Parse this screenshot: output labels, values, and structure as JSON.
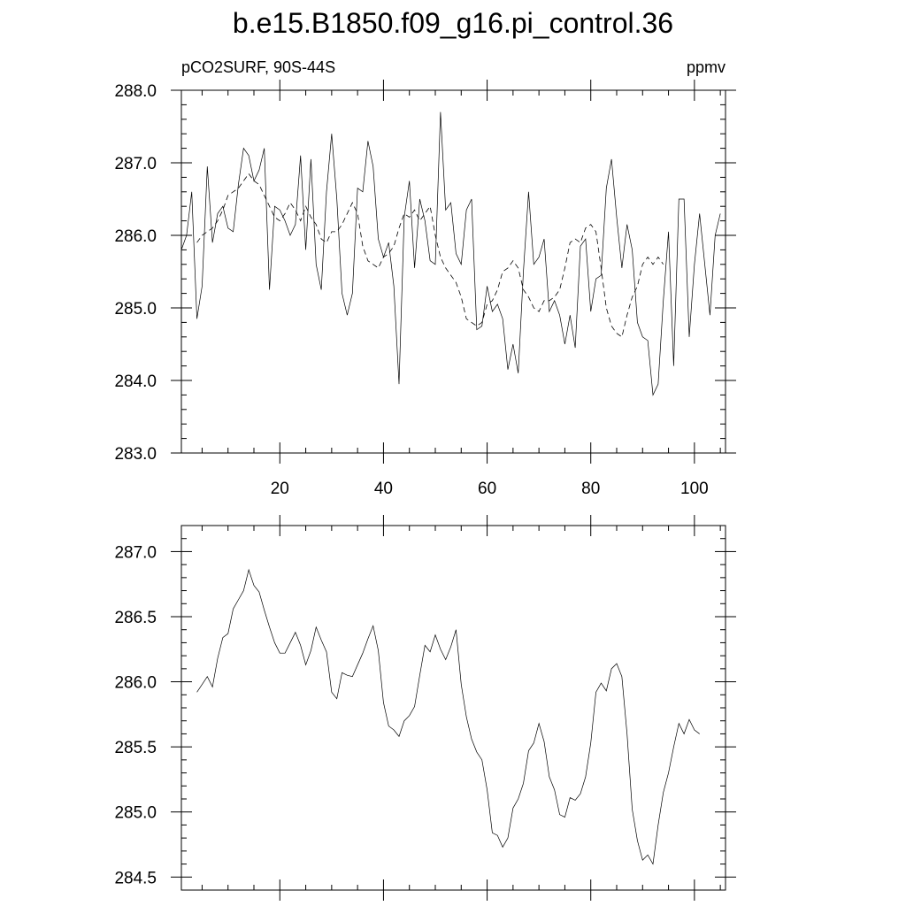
{
  "figure_title": "b.e15.B1850.f09_g16.pi_control.36",
  "chart_data": [
    {
      "type": "line",
      "title": "",
      "left_string": "pCO2SURF, 90S-44S",
      "right_string": "ppmv",
      "xlim": [
        1,
        106
      ],
      "ylim": [
        283.0,
        288.0
      ],
      "x_ticks": [
        20,
        40,
        60,
        80,
        100
      ],
      "y_ticks": [
        283.0,
        284.0,
        285.0,
        286.0,
        287.0,
        288.0
      ],
      "y_tick_labels": [
        "283.0",
        "284.0",
        "285.0",
        "286.0",
        "287.0",
        "288.0"
      ],
      "x_start": 1,
      "series": [
        {
          "style": "solid",
          "values": [
            285.8,
            286.0,
            286.6,
            284.85,
            285.3,
            286.95,
            285.9,
            286.3,
            286.4,
            286.1,
            286.05,
            286.7,
            287.2,
            287.1,
            286.75,
            286.9,
            287.2,
            285.25,
            286.4,
            286.35,
            286.2,
            286.0,
            286.15,
            287.1,
            285.8,
            287.05,
            285.6,
            285.25,
            286.6,
            287.4,
            286.5,
            285.2,
            284.9,
            285.2,
            286.65,
            286.6,
            287.3,
            286.95,
            285.95,
            285.7,
            285.9,
            285.3,
            283.95,
            286.25,
            286.75,
            285.55,
            286.5,
            286.2,
            285.65,
            285.6,
            287.7,
            286.35,
            286.45,
            285.75,
            285.6,
            286.35,
            286.5,
            284.7,
            284.75,
            285.3,
            284.95,
            285.05,
            284.85,
            284.15,
            284.5,
            284.1,
            285.5,
            286.6,
            285.6,
            285.7,
            285.95,
            284.95,
            285.1,
            284.9,
            284.5,
            284.9,
            284.45,
            285.85,
            285.95,
            284.95,
            285.4,
            285.45,
            286.65,
            287.05,
            286.25,
            285.55,
            286.15,
            285.8,
            284.8,
            284.6,
            284.55,
            283.8,
            283.95,
            285.1,
            286.05,
            284.2,
            286.5,
            286.5,
            284.6,
            285.6,
            286.3,
            285.6,
            284.9,
            286.0,
            286.3
          ]
        },
        {
          "style": "dashed",
          "x_start": 4,
          "values": [
            285.9,
            286.0,
            286.05,
            286.1,
            286.2,
            286.35,
            286.55,
            286.6,
            286.65,
            286.75,
            286.85,
            286.75,
            286.7,
            286.55,
            286.4,
            286.25,
            286.2,
            286.3,
            286.45,
            286.35,
            286.2,
            286.4,
            286.25,
            286.15,
            285.95,
            285.9,
            286.05,
            286.05,
            286.15,
            286.3,
            286.45,
            286.3,
            285.85,
            285.65,
            285.6,
            285.55,
            285.7,
            285.75,
            285.85,
            286.1,
            286.3,
            286.25,
            286.35,
            286.2,
            286.3,
            286.4,
            286.0,
            285.7,
            285.55,
            285.45,
            285.35,
            285.15,
            284.85,
            284.8,
            284.75,
            284.8,
            285.05,
            285.1,
            285.25,
            285.5,
            285.55,
            285.65,
            285.55,
            285.25,
            285.15,
            285.0,
            284.95,
            285.1,
            285.1,
            285.15,
            285.25,
            285.55,
            285.9,
            285.95,
            285.9,
            286.1,
            286.15,
            286.05,
            285.55,
            285.0,
            284.75,
            284.65,
            284.6,
            284.9,
            285.15,
            285.3,
            285.6,
            285.7,
            285.6,
            285.7,
            285.6
          ]
        }
      ]
    },
    {
      "type": "line",
      "title": "",
      "xlim": [
        1,
        106
      ],
      "ylim": [
        284.4,
        287.2
      ],
      "x_ticks": [
        20,
        40,
        60,
        80,
        100
      ],
      "y_ticks": [
        284.5,
        285.0,
        285.5,
        286.0,
        286.5,
        287.0
      ],
      "y_tick_labels": [
        "284.5",
        "285.0",
        "285.5",
        "286.0",
        "286.5",
        "287.0"
      ],
      "series": [
        {
          "style": "solid",
          "x_start": 4,
          "values": [
            285.92,
            285.98,
            286.04,
            285.96,
            286.18,
            286.34,
            286.37,
            286.56,
            286.63,
            286.7,
            286.86,
            286.74,
            286.69,
            286.55,
            286.42,
            286.3,
            286.22,
            286.22,
            286.3,
            286.38,
            286.28,
            286.13,
            286.24,
            286.42,
            286.32,
            286.23,
            285.92,
            285.87,
            286.07,
            286.05,
            286.04,
            286.13,
            286.22,
            286.33,
            286.43,
            286.24,
            285.84,
            285.66,
            285.63,
            285.58,
            285.7,
            285.74,
            285.81,
            286.05,
            286.28,
            286.23,
            286.36,
            286.25,
            286.17,
            286.27,
            286.4,
            285.98,
            285.73,
            285.56,
            285.46,
            285.4,
            285.17,
            284.84,
            284.82,
            284.73,
            284.8,
            285.03,
            285.1,
            285.22,
            285.47,
            285.53,
            285.68,
            285.54,
            285.27,
            285.17,
            284.98,
            284.96,
            285.11,
            285.09,
            285.14,
            285.27,
            285.53,
            285.92,
            285.99,
            285.93,
            286.1,
            286.14,
            286.04,
            285.6,
            285.02,
            284.78,
            284.63,
            284.67,
            284.6,
            284.9,
            285.15,
            285.3,
            285.5,
            285.68,
            285.6,
            285.71,
            285.63,
            285.6
          ]
        }
      ]
    }
  ]
}
